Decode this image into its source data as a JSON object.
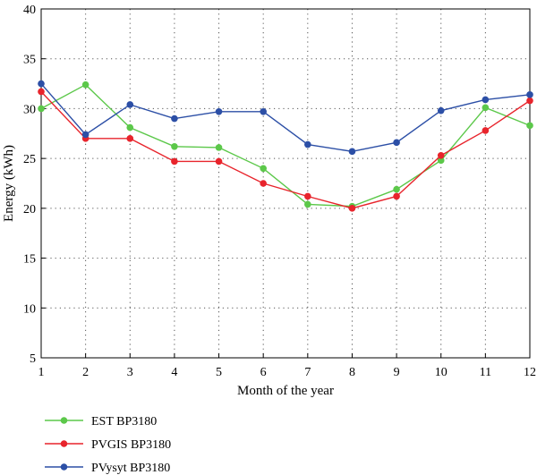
{
  "chart_data": {
    "type": "line",
    "x": [
      1,
      2,
      3,
      4,
      5,
      6,
      7,
      8,
      9,
      10,
      11,
      12
    ],
    "xlabel": "Month of the year",
    "ylabel": "Energy (kWh)",
    "xlim": [
      1,
      12
    ],
    "ylim": [
      5,
      40
    ],
    "yticks": [
      5,
      10,
      15,
      20,
      25,
      30,
      35,
      40
    ],
    "grid": true,
    "grid_style": "dotted",
    "legend_position": "bottom-left, below plot",
    "series": [
      {
        "name": "EST BP3180",
        "color": "#5cc84a",
        "values": [
          30.0,
          32.4,
          28.1,
          26.2,
          26.1,
          24.0,
          20.4,
          20.2,
          21.9,
          24.8,
          30.1,
          28.3
        ]
      },
      {
        "name": "PVGIS BP3180",
        "color": "#e8242c",
        "values": [
          31.7,
          27.0,
          27.0,
          24.7,
          24.7,
          22.5,
          21.2,
          20.0,
          21.2,
          25.3,
          27.8,
          30.8
        ]
      },
      {
        "name": "PVysyt BP3180",
        "color": "#2c4fa6",
        "values": [
          32.5,
          27.4,
          30.4,
          29.0,
          29.7,
          29.7,
          26.4,
          25.7,
          26.6,
          29.8,
          30.9,
          31.4
        ]
      }
    ]
  }
}
